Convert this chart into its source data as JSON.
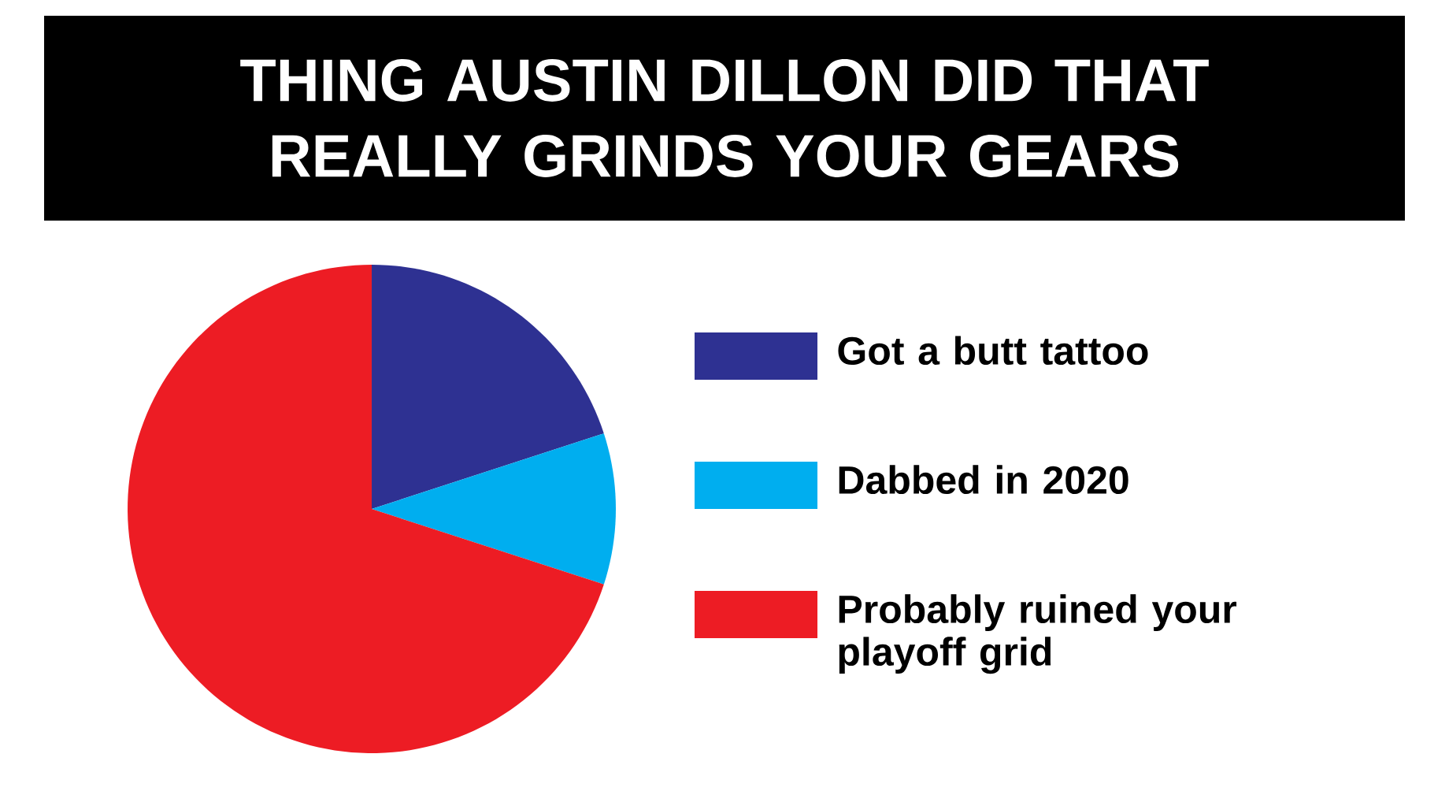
{
  "chart_data": {
    "type": "pie",
    "title": "THING AUSTIN DILLON DID THAT REALLY GRINDS YOUR GEARS",
    "categories": [
      "Got a butt tattoo",
      "Dabbed in 2020",
      "Probably ruined your playoff grid"
    ],
    "values": [
      20,
      10,
      70
    ],
    "colors": [
      "#2e3192",
      "#00aeef",
      "#ed1c24"
    ],
    "legend": "right"
  }
}
